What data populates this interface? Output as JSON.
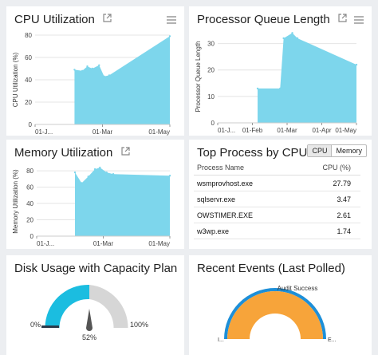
{
  "colors": {
    "area": "#7dd6ec",
    "gauge_fill": "#1bbde0",
    "gauge_empty": "#d6d6d6",
    "needle": "#555555",
    "semi": "#f7a43a",
    "semi_rim": "#1d8fd8",
    "panel_bg": "#ffffff",
    "page_bg": "#eceef1"
  },
  "icons": {
    "external": "external-link-icon",
    "menu": "hamburger-menu-icon"
  },
  "cpu": {
    "title": "CPU Utilization",
    "chart_data": {
      "type": "area",
      "ylabel": "CPU Utilization (%)",
      "xlabel": "",
      "x_ticks": [
        "01-J...",
        "01-Mar",
        "01-May"
      ],
      "y_ticks": [
        "0",
        "20",
        "40",
        "60",
        "80"
      ],
      "ylim": [
        0,
        80
      ],
      "xlim": [
        0,
        4
      ],
      "x": [
        1.17,
        1.4,
        1.55,
        1.7,
        1.9,
        2.05,
        2.2,
        4
      ],
      "y": [
        49,
        48,
        52,
        50,
        53,
        43,
        44,
        79
      ]
    }
  },
  "pql": {
    "title": "Processor Queue Length",
    "chart_data": {
      "type": "area",
      "ylabel": "Processor Queue Length",
      "xlabel": "",
      "x_ticks": [
        "01-J...",
        "01-Feb",
        "01-Mar",
        "01-Apr",
        "01-May"
      ],
      "y_ticks": [
        "0",
        "10",
        "20",
        "30"
      ],
      "ylim": [
        0,
        35
      ],
      "xlim": [
        0,
        4
      ],
      "x": [
        1.15,
        1.8,
        1.9,
        2.15,
        2.3,
        4
      ],
      "y": [
        13,
        13,
        32,
        34,
        32,
        22
      ]
    }
  },
  "mem": {
    "title": "Memory Utilization",
    "chart_data": {
      "type": "area",
      "ylabel": "Memory Utilization (%)",
      "xlabel": "",
      "x_ticks": [
        "01-J...",
        "01-Mar",
        "01-May"
      ],
      "y_ticks": [
        "0",
        "20",
        "40",
        "60",
        "80"
      ],
      "ylim": [
        0,
        85
      ],
      "xlim": [
        0,
        4
      ],
      "x": [
        1.15,
        1.35,
        1.55,
        1.75,
        1.9,
        2.1,
        2.3,
        4
      ],
      "y": [
        78,
        65,
        73,
        82,
        84,
        78,
        76,
        74
      ]
    }
  },
  "top": {
    "title": "Top Process by CPU",
    "toggle": [
      "CPU",
      "Memory"
    ],
    "headers": [
      "Process Name",
      "CPU (%)"
    ],
    "rows": [
      {
        "name": "wsmprovhost.exe",
        "value": "27.79"
      },
      {
        "name": "sqlservr.exe",
        "value": "3.47"
      },
      {
        "name": "OWSTIMER.EXE",
        "value": "2.61"
      },
      {
        "name": "w3wp.exe",
        "value": "1.74"
      }
    ]
  },
  "disk": {
    "title": "Disk Usage with Capacity Plan",
    "min_label": "0%",
    "max_label": "100%",
    "value_label": "52%",
    "value": 0.52
  },
  "events": {
    "title": "Recent Events (Last Polled)",
    "slice_label": "Audit Success",
    "left_label": "I...",
    "right_label": "E..."
  }
}
